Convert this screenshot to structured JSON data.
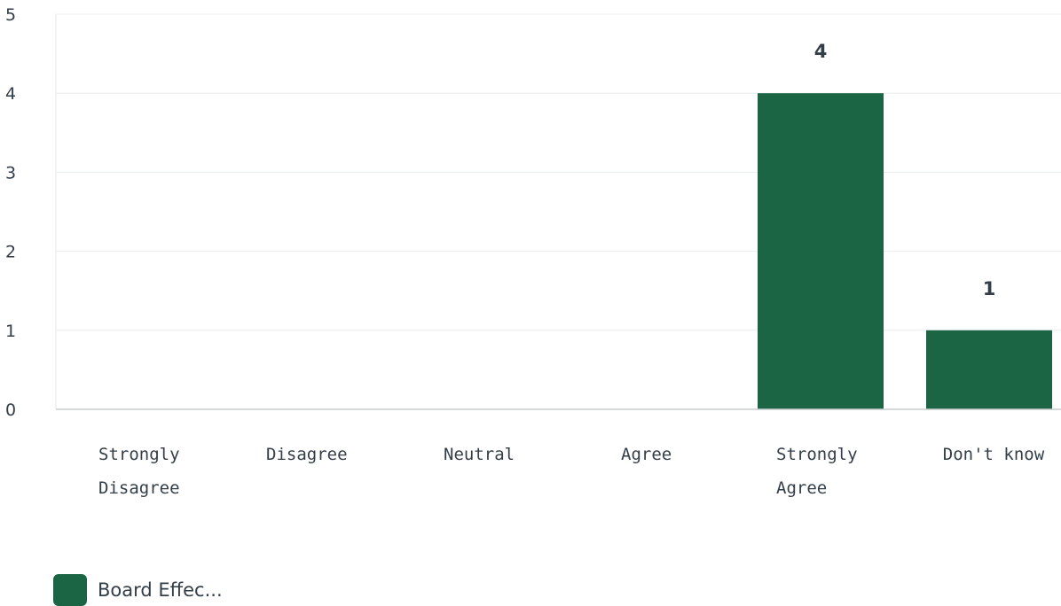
{
  "chart_data": {
    "type": "bar",
    "categories": [
      "Strongly Disagree",
      "Disagree",
      "Neutral",
      "Agree",
      "Strongly Agree",
      "Don't know"
    ],
    "category_lines": [
      [
        "Strongly",
        "Disagree"
      ],
      [
        "Disagree"
      ],
      [
        "Neutral"
      ],
      [
        "Agree"
      ],
      [
        "Strongly",
        "Agree"
      ],
      [
        "Don't know"
      ]
    ],
    "series": [
      {
        "name": "Board Effec...",
        "values": [
          0,
          0,
          0,
          0,
          4,
          1
        ],
        "color": "#1b6545"
      }
    ],
    "data_labels": [
      "",
      "",
      "",
      "",
      "4",
      "1"
    ],
    "yticks": [
      "0",
      "1",
      "2",
      "3",
      "4",
      "5"
    ],
    "ylim": [
      0,
      5
    ],
    "grid": true,
    "legend_position": "bottom-left"
  }
}
